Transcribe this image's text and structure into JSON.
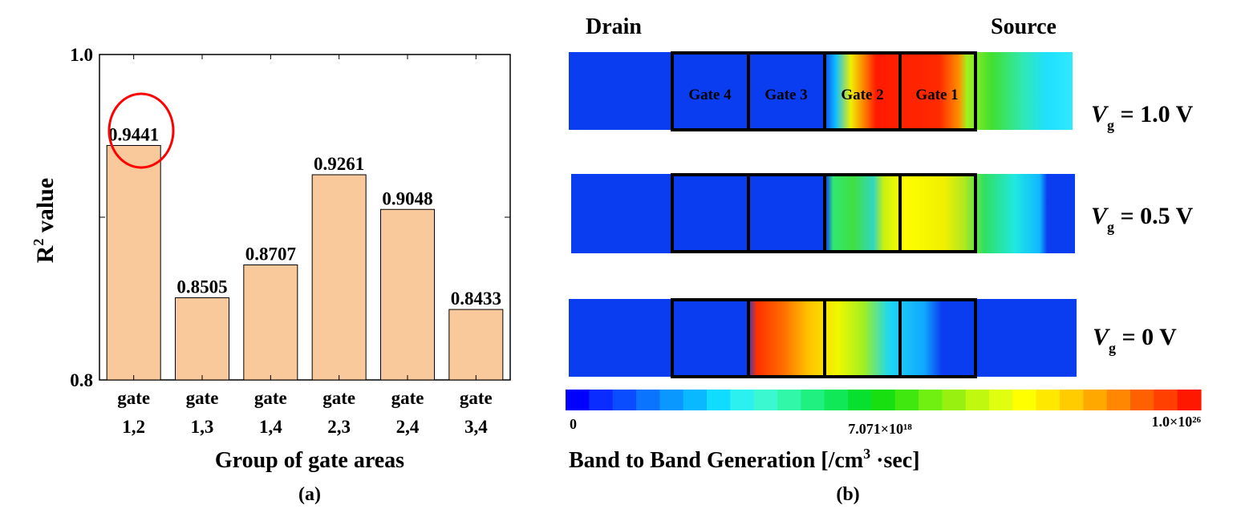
{
  "panel_a": {
    "caption": "(a)",
    "ylabel_main": "R",
    "ylabel_sup": "2",
    "ylabel_rest": " value",
    "xlabel": "Group of gate areas"
  },
  "panel_b": {
    "caption": "(b)",
    "drain": "Drain",
    "source": "Source",
    "gate_labels": [
      "Gate 4",
      "Gate 3",
      "Gate 2",
      "Gate 1"
    ],
    "conditions": [
      {
        "v": "V",
        "sub": "g",
        "rest": " = 1.0 V"
      },
      {
        "v": "V",
        "sub": "g",
        "rest": " = 0.5 V"
      },
      {
        "v": "V",
        "sub": "g",
        "rest": " = 0 V"
      }
    ],
    "colorbar": {
      "min_label": "0",
      "mid_label": "7.071×10¹⁸",
      "max_label": "1.0×10²⁶",
      "title_main": "Band to Band Generation [/cm",
      "title_sup": "3",
      "title_rest": " ·sec]",
      "colors": [
        "#0000ff",
        "#0a2cff",
        "#0a4cff",
        "#0a74ff",
        "#0a98ff",
        "#0ab8ff",
        "#10dcff",
        "#2cf0f0",
        "#3cf8d0",
        "#30f8a8",
        "#20f080",
        "#10e858",
        "#08e030",
        "#18e010",
        "#40e810",
        "#70f010",
        "#98f010",
        "#c0f810",
        "#e0ff10",
        "#ffff00",
        "#ffe800",
        "#ffcc00",
        "#ffa800",
        "#ff8800",
        "#ff6000",
        "#ff4000",
        "#ff1800"
      ]
    }
  },
  "chart_data": {
    "type": "bar",
    "categories": [
      "gate 1,2",
      "gate 1,3",
      "gate 1,4",
      "gate 2,3",
      "gate 2,4",
      "gate 3,4"
    ],
    "category_lines": [
      [
        "gate",
        "1,2"
      ],
      [
        "gate",
        "1,3"
      ],
      [
        "gate",
        "1,4"
      ],
      [
        "gate",
        "2,3"
      ],
      [
        "gate",
        "2,4"
      ],
      [
        "gate",
        "3,4"
      ]
    ],
    "values": [
      0.9441,
      0.8505,
      0.8707,
      0.9261,
      0.9048,
      0.8433
    ],
    "value_labels": [
      "0.9441",
      "0.8505",
      "0.8707",
      "0.9261",
      "0.9048",
      "0.8433"
    ],
    "ylim": [
      0.8,
      1.0
    ],
    "yticks": [
      "0.8",
      "1.0"
    ],
    "highlighted_index": 0,
    "bar_color": "#f9c89b",
    "highlight_color": "#ff0000"
  }
}
